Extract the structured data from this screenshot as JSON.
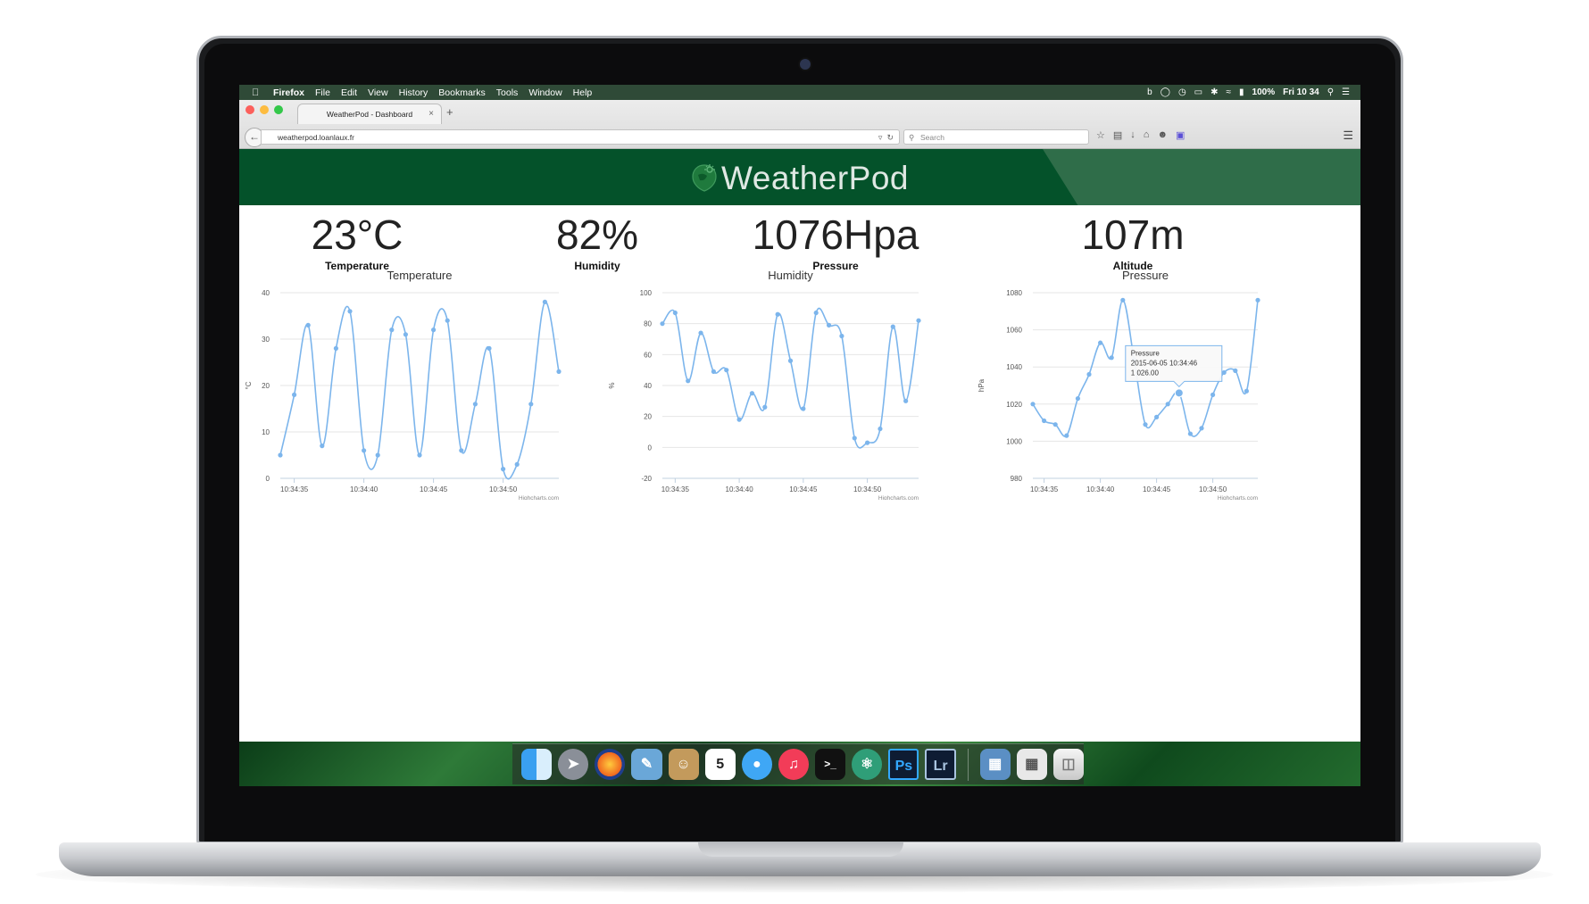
{
  "menubar": {
    "app": "Firefox",
    "items": [
      "File",
      "Edit",
      "View",
      "History",
      "Bookmarks",
      "Tools",
      "Window",
      "Help"
    ],
    "battery": "100%",
    "clock": "Fri 10 34"
  },
  "browser": {
    "tab_title": "WeatherPod - Dashboard",
    "url": "weatherpod.loanlaux.fr",
    "search_placeholder": "Search"
  },
  "site": {
    "logo_text": "WeatherPod",
    "header_color": "#04522a"
  },
  "stats": [
    {
      "value": "23°C",
      "label": "Temperature"
    },
    {
      "value": "82%",
      "label": "Humidity"
    },
    {
      "value": "1076Hpa",
      "label": "Pressure"
    },
    {
      "value": "107m",
      "label": "Altitude"
    }
  ],
  "chart_data": [
    {
      "type": "line",
      "title": "Temperature",
      "ylabel": "°C",
      "xlabel": "",
      "credits": "Highcharts.com",
      "ylim": [
        0,
        40
      ],
      "yticks": [
        0,
        10,
        20,
        30,
        40
      ],
      "xticks": [
        "10:34:35",
        "10:34:40",
        "10:34:45",
        "10:34:50"
      ],
      "color": "#7cb5ec",
      "series": [
        {
          "values": [
            5,
            18,
            33,
            7,
            28,
            36,
            6,
            5,
            32,
            31,
            5,
            32,
            34,
            6,
            16,
            28,
            2,
            3,
            16,
            38,
            23
          ]
        }
      ]
    },
    {
      "type": "line",
      "title": "Humidity",
      "ylabel": "%",
      "xlabel": "",
      "credits": "Highcharts.com",
      "ylim": [
        -20,
        100
      ],
      "yticks": [
        -20,
        0,
        20,
        40,
        60,
        80,
        100
      ],
      "xticks": [
        "10:34:35",
        "10:34:40",
        "10:34:45",
        "10:34:50"
      ],
      "color": "#7cb5ec",
      "series": [
        {
          "values": [
            80,
            87,
            43,
            74,
            49,
            50,
            18,
            35,
            26,
            86,
            56,
            25,
            87,
            79,
            72,
            6,
            3,
            12,
            78,
            30,
            82
          ]
        }
      ]
    },
    {
      "type": "line",
      "title": "Pressure",
      "ylabel": "hPa",
      "xlabel": "",
      "credits": "Highcharts.com",
      "ylim": [
        980,
        1080
      ],
      "yticks": [
        980,
        1000,
        1020,
        1040,
        1060,
        1080
      ],
      "xticks": [
        "10:34:35",
        "10:34:40",
        "10:34:45",
        "10:34:50"
      ],
      "color": "#7cb5ec",
      "series": [
        {
          "values": [
            1020,
            1011,
            1009,
            1003,
            1023,
            1036,
            1053,
            1045,
            1076,
            1044,
            1009,
            1013,
            1020,
            1026,
            1004,
            1007,
            1025,
            1037,
            1038,
            1027,
            1076
          ]
        }
      ],
      "tooltip": {
        "series": "Pressure",
        "time": "2015-06-05 10:34:46",
        "value": "1 026.00",
        "index": 13
      }
    }
  ]
}
